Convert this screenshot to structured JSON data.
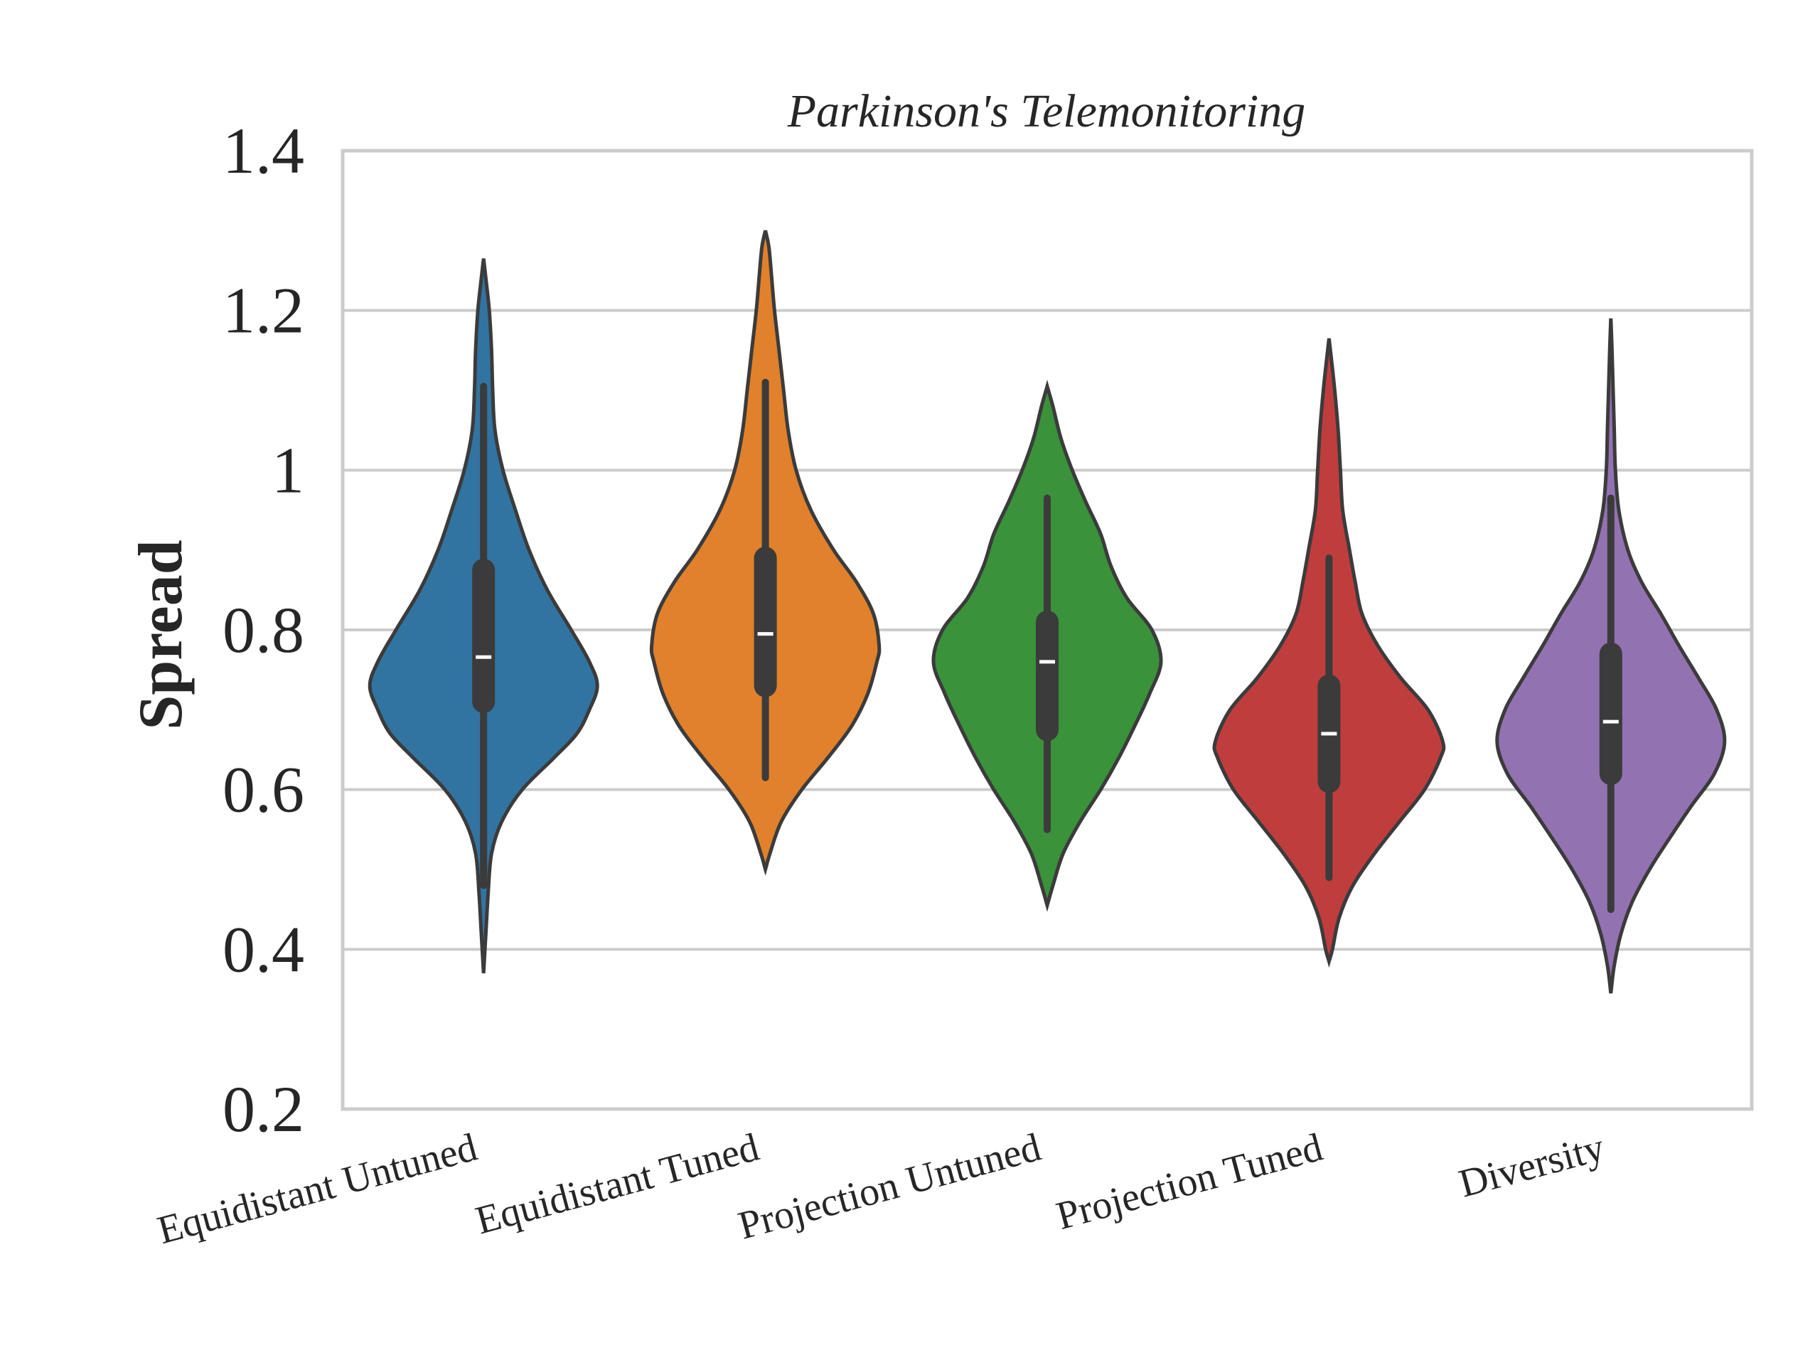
{
  "chart_data": {
    "type": "violin",
    "title": "Parkinson's Telemonitoring",
    "xlabel": "",
    "ylabel": "Spread",
    "ylim": [
      0.2,
      1.4
    ],
    "yticks": [
      {
        "value": 0.2,
        "label": "0.2"
      },
      {
        "value": 0.4,
        "label": "0.4"
      },
      {
        "value": 0.6,
        "label": "0.6"
      },
      {
        "value": 0.8,
        "label": "0.8"
      },
      {
        "value": 1.0,
        "label": "1"
      },
      {
        "value": 1.2,
        "label": "1.2"
      },
      {
        "value": 1.4,
        "label": "1.4"
      }
    ],
    "grid": true,
    "categories": [
      "Equidistant Untuned",
      "Equidistant Tuned",
      "Projection Untuned",
      "Projection Tuned",
      "Diversity"
    ],
    "series": [
      {
        "category": "Equidistant Untuned",
        "color": "#3274a1",
        "min": 0.37,
        "max": 1.265,
        "whisker_low": 0.48,
        "whisker_high": 1.105,
        "q1": 0.71,
        "median": 0.766,
        "q3": 0.875,
        "density": [
          [
            0.37,
            0.0
          ],
          [
            0.42,
            0.02
          ],
          [
            0.47,
            0.04
          ],
          [
            0.52,
            0.07
          ],
          [
            0.56,
            0.16
          ],
          [
            0.6,
            0.34
          ],
          [
            0.64,
            0.62
          ],
          [
            0.67,
            0.82
          ],
          [
            0.7,
            0.93
          ],
          [
            0.73,
            1.0
          ],
          [
            0.76,
            0.93
          ],
          [
            0.8,
            0.77
          ],
          [
            0.85,
            0.56
          ],
          [
            0.9,
            0.4
          ],
          [
            0.95,
            0.28
          ],
          [
            1.0,
            0.17
          ],
          [
            1.05,
            0.1
          ],
          [
            1.1,
            0.08
          ],
          [
            1.15,
            0.07
          ],
          [
            1.2,
            0.05
          ],
          [
            1.24,
            0.02
          ],
          [
            1.265,
            0.0
          ]
        ]
      },
      {
        "category": "Equidistant Tuned",
        "color": "#e1812c",
        "min": 0.5,
        "max": 1.3,
        "whisker_low": 0.615,
        "whisker_high": 1.11,
        "q1": 0.73,
        "median": 0.795,
        "q3": 0.89,
        "density": [
          [
            0.5,
            0.0
          ],
          [
            0.52,
            0.04
          ],
          [
            0.56,
            0.14
          ],
          [
            0.6,
            0.32
          ],
          [
            0.64,
            0.55
          ],
          [
            0.68,
            0.76
          ],
          [
            0.72,
            0.9
          ],
          [
            0.76,
            0.98
          ],
          [
            0.78,
            1.0
          ],
          [
            0.82,
            0.95
          ],
          [
            0.86,
            0.8
          ],
          [
            0.9,
            0.6
          ],
          [
            0.95,
            0.4
          ],
          [
            1.0,
            0.27
          ],
          [
            1.05,
            0.2
          ],
          [
            1.1,
            0.16
          ],
          [
            1.15,
            0.12
          ],
          [
            1.2,
            0.08
          ],
          [
            1.25,
            0.05
          ],
          [
            1.28,
            0.03
          ],
          [
            1.3,
            0.0
          ]
        ]
      },
      {
        "category": "Projection Untuned",
        "color": "#3a923a",
        "min": 0.455,
        "max": 1.105,
        "whisker_low": 0.55,
        "whisker_high": 0.965,
        "q1": 0.675,
        "median": 0.76,
        "q3": 0.81,
        "density": [
          [
            0.455,
            0.0
          ],
          [
            0.48,
            0.05
          ],
          [
            0.52,
            0.14
          ],
          [
            0.56,
            0.29
          ],
          [
            0.6,
            0.47
          ],
          [
            0.64,
            0.63
          ],
          [
            0.68,
            0.77
          ],
          [
            0.72,
            0.9
          ],
          [
            0.76,
            1.0
          ],
          [
            0.8,
            0.92
          ],
          [
            0.84,
            0.7
          ],
          [
            0.88,
            0.56
          ],
          [
            0.92,
            0.47
          ],
          [
            0.96,
            0.34
          ],
          [
            1.0,
            0.22
          ],
          [
            1.04,
            0.12
          ],
          [
            1.08,
            0.05
          ],
          [
            1.105,
            0.0
          ]
        ]
      },
      {
        "category": "Projection Tuned",
        "color": "#c03d3e",
        "min": 0.385,
        "max": 1.165,
        "whisker_low": 0.49,
        "whisker_high": 0.89,
        "q1": 0.61,
        "median": 0.67,
        "q3": 0.73,
        "density": [
          [
            0.385,
            0.0
          ],
          [
            0.4,
            0.03
          ],
          [
            0.44,
            0.09
          ],
          [
            0.48,
            0.21
          ],
          [
            0.52,
            0.4
          ],
          [
            0.56,
            0.62
          ],
          [
            0.6,
            0.84
          ],
          [
            0.64,
            0.98
          ],
          [
            0.66,
            1.0
          ],
          [
            0.7,
            0.87
          ],
          [
            0.74,
            0.63
          ],
          [
            0.78,
            0.43
          ],
          [
            0.82,
            0.29
          ],
          [
            0.86,
            0.23
          ],
          [
            0.9,
            0.18
          ],
          [
            0.95,
            0.12
          ],
          [
            1.0,
            0.1
          ],
          [
            1.05,
            0.08
          ],
          [
            1.1,
            0.05
          ],
          [
            1.14,
            0.02
          ],
          [
            1.165,
            0.0
          ]
        ]
      },
      {
        "category": "Diversity",
        "color": "#9372b2",
        "min": 0.345,
        "max": 1.19,
        "whisker_low": 0.45,
        "whisker_high": 0.965,
        "q1": 0.62,
        "median": 0.685,
        "q3": 0.77,
        "density": [
          [
            0.345,
            0.0
          ],
          [
            0.38,
            0.03
          ],
          [
            0.42,
            0.09
          ],
          [
            0.46,
            0.19
          ],
          [
            0.5,
            0.34
          ],
          [
            0.54,
            0.52
          ],
          [
            0.58,
            0.71
          ],
          [
            0.62,
            0.91
          ],
          [
            0.66,
            1.0
          ],
          [
            0.7,
            0.93
          ],
          [
            0.74,
            0.77
          ],
          [
            0.78,
            0.6
          ],
          [
            0.82,
            0.44
          ],
          [
            0.86,
            0.27
          ],
          [
            0.9,
            0.15
          ],
          [
            0.95,
            0.07
          ],
          [
            1.0,
            0.04
          ],
          [
            1.05,
            0.03
          ],
          [
            1.1,
            0.02
          ],
          [
            1.15,
            0.01
          ],
          [
            1.19,
            0.0
          ]
        ]
      }
    ]
  }
}
